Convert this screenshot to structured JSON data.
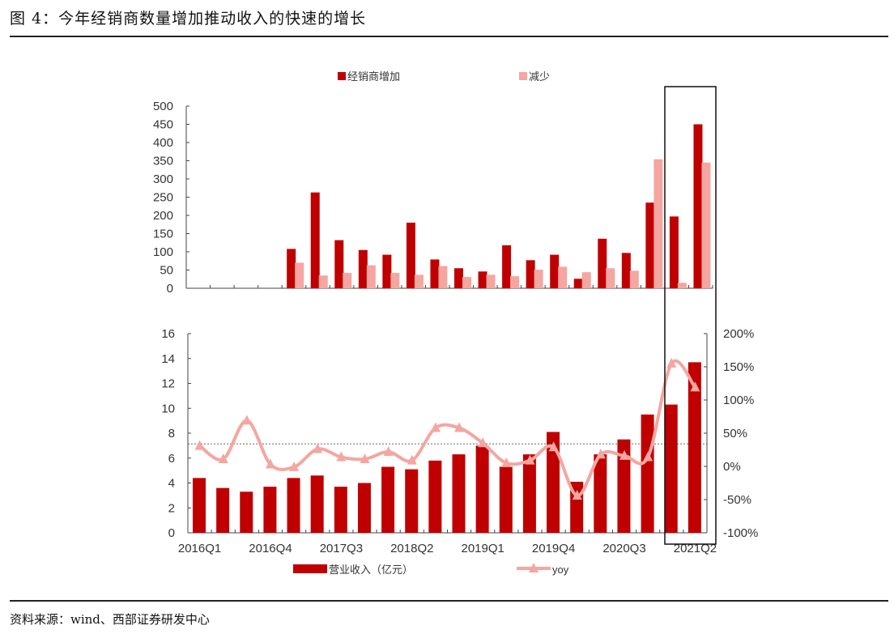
{
  "title": "图 4：今年经销商数量增加推动收入的快速的增长",
  "source": "资料来源：wind、西部证券研发中心",
  "colors": {
    "dark": "#c00000",
    "light": "#f4a6a0"
  },
  "chart_data": [
    {
      "type": "bar",
      "title": "",
      "legend": [
        "经销商增加",
        "减少"
      ],
      "legend_position": "top",
      "categories": [
        "2016Q1",
        "2016Q2",
        "2016Q3",
        "2016Q4",
        "2017Q1",
        "2017Q2",
        "2017Q3",
        "2017Q4",
        "2018Q1",
        "2018Q2",
        "2018Q3",
        "2018Q4",
        "2019Q1",
        "2019Q2",
        "2019Q3",
        "2019Q4",
        "2020Q1",
        "2020Q2",
        "2020Q3",
        "2020Q4",
        "2021Q1",
        "2021Q2"
      ],
      "series": [
        {
          "name": "经销商增加",
          "values": [
            0,
            0,
            0,
            0,
            108,
            263,
            132,
            105,
            92,
            180,
            79,
            55,
            46,
            118,
            77,
            92,
            26,
            136,
            97,
            235,
            197,
            450
          ]
        },
        {
          "name": "减少",
          "values": [
            0,
            0,
            0,
            0,
            70,
            35,
            42,
            63,
            42,
            37,
            61,
            31,
            37,
            33,
            51,
            59,
            44,
            55,
            48,
            354,
            15,
            345
          ]
        }
      ],
      "ylim": [
        0,
        500
      ],
      "yticks": [
        "0",
        "50",
        "100",
        "150",
        "200",
        "250",
        "300",
        "350",
        "400",
        "450",
        "500"
      ]
    },
    {
      "type": "bar+line",
      "legend": [
        "营业收入（亿元）",
        "yoy"
      ],
      "legend_position": "bottom",
      "categories": [
        "2016Q1",
        "2016Q2",
        "2016Q3",
        "2016Q4",
        "2017Q1",
        "2017Q2",
        "2017Q3",
        "2017Q4",
        "2018Q1",
        "2018Q2",
        "2018Q3",
        "2018Q4",
        "2019Q1",
        "2019Q2",
        "2019Q3",
        "2019Q4",
        "2020Q1",
        "2020Q2",
        "2020Q3",
        "2020Q4",
        "2021Q1",
        "2021Q2"
      ],
      "xticklabels": [
        "2016Q1",
        "2016Q4",
        "2017Q3",
        "2018Q2",
        "2019Q1",
        "2019Q4",
        "2020Q3",
        "2021Q2"
      ],
      "series": [
        {
          "name": "营业收入（亿元）",
          "values": [
            4.4,
            3.6,
            3.3,
            3.7,
            4.4,
            4.6,
            3.7,
            4.0,
            5.3,
            5.1,
            5.8,
            6.3,
            7.0,
            5.3,
            6.3,
            8.1,
            4.1,
            6.3,
            7.5,
            9.5,
            10.3,
            13.7
          ]
        },
        {
          "name": "yoy",
          "axis": "right",
          "values": [
            31,
            11,
            69,
            3,
            -1,
            26,
            14,
            11,
            22,
            9,
            58,
            58,
            35,
            5,
            9,
            29,
            -44,
            18,
            16,
            14,
            155,
            119
          ]
        }
      ],
      "ylim": [
        0,
        16
      ],
      "yticks": [
        "0",
        "2",
        "4",
        "6",
        "8",
        "10",
        "12",
        "14",
        "16"
      ],
      "y2lim": [
        -100,
        200
      ],
      "y2ticks": [
        "-100%",
        "-50%",
        "0%",
        "50%",
        "100%",
        "150%",
        "200%"
      ],
      "reference_line_yoy": 34
    }
  ]
}
